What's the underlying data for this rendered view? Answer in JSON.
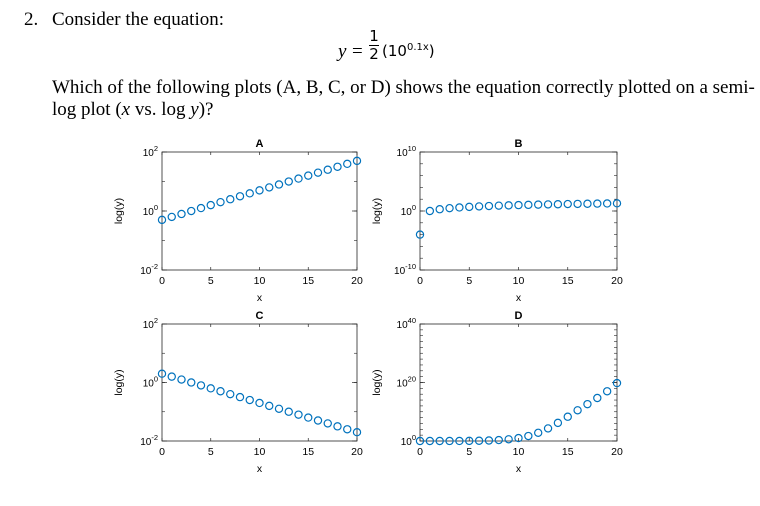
{
  "question": {
    "number": "2.",
    "prompt": "Consider the equation:",
    "equation": {
      "lhs": "y",
      "equals": "=",
      "numerator": "1",
      "denominator": "2",
      "body_base": "(10",
      "body_exponent": "0.1x",
      "body_close": ")"
    },
    "line1_before": "Which of the following plots (A, B, C, or D) shows the equation correctly plotted on a semi-",
    "line2_a": "log plot (",
    "line2_x": "x",
    "line2_b": " vs. log ",
    "line2_y": "y",
    "line2_c": ")?"
  },
  "chart_data": [
    {
      "panel": "A",
      "type": "scatter",
      "title": "A",
      "xlabel": "x",
      "ylabel": "log(y)",
      "y_scale": "log",
      "xlim": [
        0,
        20
      ],
      "ylim_exponents": [
        -2,
        2
      ],
      "xticks": [
        "0",
        "5",
        "10",
        "15",
        "20"
      ],
      "yticks": [
        {
          "base": "10",
          "exp": "2"
        },
        {
          "base": "10",
          "exp": "0"
        },
        {
          "base": "10",
          "exp": "-2"
        }
      ],
      "x": [
        0,
        1,
        2,
        3,
        4,
        5,
        6,
        7,
        8,
        9,
        10,
        11,
        12,
        13,
        14,
        15,
        16,
        17,
        18,
        19,
        20
      ],
      "log10_y": [
        -0.301,
        -0.201,
        -0.101,
        -0.001,
        0.099,
        0.199,
        0.299,
        0.399,
        0.499,
        0.599,
        0.699,
        0.799,
        0.899,
        0.999,
        1.099,
        1.199,
        1.299,
        1.399,
        1.499,
        1.599,
        1.699
      ]
    },
    {
      "panel": "B",
      "type": "scatter",
      "title": "B",
      "xlabel": "x",
      "ylabel": "log(y)",
      "y_scale": "log",
      "xlim": [
        0,
        20
      ],
      "ylim_exponents": [
        -10,
        10
      ],
      "xticks": [
        "0",
        "5",
        "10",
        "15",
        "20"
      ],
      "yticks": [
        {
          "base": "10",
          "exp": "10"
        },
        {
          "base": "10",
          "exp": "0"
        },
        {
          "base": "10",
          "exp": "-10"
        }
      ],
      "x": [
        0,
        1,
        2,
        3,
        4,
        5,
        6,
        7,
        8,
        9,
        10,
        11,
        12,
        13,
        14,
        15,
        16,
        17,
        18,
        19,
        20
      ],
      "log10_y": [
        -4.0,
        0.0,
        0.301,
        0.477,
        0.602,
        0.699,
        0.778,
        0.845,
        0.903,
        0.954,
        1.0,
        1.041,
        1.079,
        1.114,
        1.146,
        1.176,
        1.204,
        1.23,
        1.255,
        1.279,
        1.301
      ]
    },
    {
      "panel": "C",
      "type": "scatter",
      "title": "C",
      "xlabel": "x",
      "ylabel": "log(y)",
      "y_scale": "log",
      "xlim": [
        0,
        20
      ],
      "ylim_exponents": [
        -2,
        2
      ],
      "xticks": [
        "0",
        "5",
        "10",
        "15",
        "20"
      ],
      "yticks": [
        {
          "base": "10",
          "exp": "2"
        },
        {
          "base": "10",
          "exp": "0"
        },
        {
          "base": "10",
          "exp": "-2"
        }
      ],
      "x": [
        0,
        1,
        2,
        3,
        4,
        5,
        6,
        7,
        8,
        9,
        10,
        11,
        12,
        13,
        14,
        15,
        16,
        17,
        18,
        19,
        20
      ],
      "log10_y": [
        0.301,
        0.201,
        0.101,
        0.001,
        -0.099,
        -0.199,
        -0.299,
        -0.399,
        -0.499,
        -0.599,
        -0.699,
        -0.799,
        -0.899,
        -0.999,
        -1.099,
        -1.199,
        -1.299,
        -1.399,
        -1.499,
        -1.599,
        -1.699
      ]
    },
    {
      "panel": "D",
      "type": "scatter",
      "title": "D",
      "xlabel": "x",
      "ylabel": "log(y)",
      "y_scale": "log",
      "xlim": [
        0,
        20
      ],
      "ylim_exponents": [
        0,
        40
      ],
      "xticks": [
        "0",
        "5",
        "10",
        "15",
        "20"
      ],
      "yticks": [
        {
          "base": "10",
          "exp": "40"
        },
        {
          "base": "10",
          "exp": "20"
        },
        {
          "base": "10",
          "exp": "0"
        }
      ],
      "x": [
        0,
        1,
        2,
        3,
        4,
        5,
        6,
        7,
        8,
        9,
        10,
        11,
        12,
        13,
        14,
        15,
        16,
        17,
        18,
        19,
        20
      ],
      "log10_y": [
        0.0,
        0.0,
        0.002,
        0.007,
        0.018,
        0.042,
        0.087,
        0.17,
        0.32,
        0.58,
        1.0,
        1.7,
        2.8,
        4.3,
        6.2,
        8.3,
        10.5,
        12.6,
        14.7,
        17.0,
        19.8
      ]
    }
  ],
  "colors": {
    "marker": "#0072BD",
    "axis": "#262626",
    "text": "#000000"
  }
}
